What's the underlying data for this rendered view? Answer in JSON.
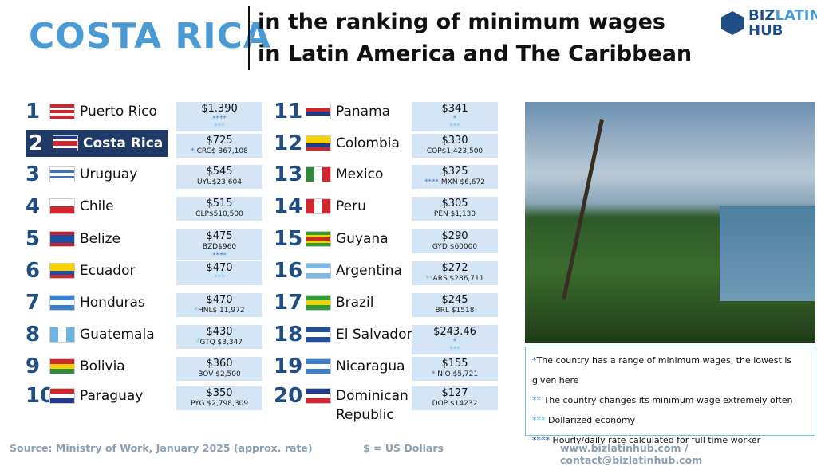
{
  "header": {
    "title": "COSTA RICA",
    "subtitle_line1": "in the ranking of minimum wages",
    "subtitle_line2": "in Latin America and The Caribbean",
    "logo_line1a": "BIZ",
    "logo_line1b": "LATIN",
    "logo_line2": "HUB"
  },
  "ranking": [
    {
      "rank": "1",
      "country": "Puerto Rico",
      "usd": "$1.390",
      "local": "",
      "marks": "****",
      "marks2": "***",
      "flag": [
        "#d0262d",
        "#fff",
        "#d0262d",
        "#fff",
        "#d0262d"
      ]
    },
    {
      "rank": "2",
      "country": "Costa Rica",
      "usd": "$725",
      "local": "CRC$ 367,108",
      "pre": "*",
      "flag": [
        "#1f3a8a",
        "#fff",
        "#d0262d",
        "#d0262d",
        "#fff",
        "#1f3a8a"
      ],
      "highlight": true
    },
    {
      "rank": "3",
      "country": "Uruguay",
      "usd": "$545",
      "local": "UYU$23,604",
      "flag": [
        "#fff",
        "#3a6fc4",
        "#fff",
        "#3a6fc4",
        "#fff"
      ]
    },
    {
      "rank": "4",
      "country": "Chile",
      "usd": "$515",
      "local": "CLP$510,500",
      "flag": [
        "#fff",
        "#d0262d"
      ]
    },
    {
      "rank": "5",
      "country": "Belize",
      "usd": "$475",
      "local": "BZD$960",
      "marks": "****",
      "flag": [
        "#c8202c",
        "#1f4fa0",
        "#1f4fa0",
        "#1f4fa0",
        "#c8202c"
      ]
    },
    {
      "rank": "6",
      "country": "Ecuador",
      "usd": "$470",
      "local": "",
      "marks2": "***",
      "flag": [
        "#f5d200",
        "#f5d200",
        "#1f4fa0",
        "#d0262d"
      ]
    },
    {
      "rank": "7",
      "country": "Honduras",
      "usd": "$470",
      "local": "HNL$ 11,972",
      "pre2": "*",
      "flag": [
        "#3a7fd0",
        "#fff",
        "#3a7fd0"
      ]
    },
    {
      "rank": "8",
      "country": "Guatemala",
      "usd": "$430",
      "local": "GTQ $3,347",
      "pre2": "*",
      "flag": [
        "#6cb4e4",
        "#fff",
        "#6cb4e4"
      ],
      "vertical": true
    },
    {
      "rank": "9",
      "country": "Bolivia",
      "usd": "$360",
      "local": "BOV $2,500",
      "flag": [
        "#d0262d",
        "#f5d200",
        "#2f8a3a"
      ]
    },
    {
      "rank": "10",
      "country": "Paraguay",
      "usd": "$350",
      "local": "PYG $2,798,309",
      "flag": [
        "#d0262d",
        "#fff",
        "#1f3a8a"
      ]
    },
    {
      "rank": "11",
      "country": "Panama",
      "usd": "$341",
      "local": "",
      "marks": "*",
      "marks2": "***",
      "flag": [
        "#fff",
        "#d0262d",
        "#1f3a8a",
        "#fff"
      ]
    },
    {
      "rank": "12",
      "country": "Colombia",
      "usd": "$330",
      "local": "COP$1,423,500",
      "flag": [
        "#f5d200",
        "#f5d200",
        "#1f3a8a",
        "#d0262d"
      ]
    },
    {
      "rank": "13",
      "country": "Mexico",
      "usd": "$325",
      "local": "MXN $6,672",
      "pre": "****",
      "flag": [
        "#2f8a3a",
        "#fff",
        "#d0262d"
      ],
      "vertical": true
    },
    {
      "rank": "14",
      "country": "Peru",
      "usd": "$305",
      "local": "PEN $1,130",
      "flag": [
        "#d0262d",
        "#fff",
        "#d0262d"
      ],
      "vertical": true
    },
    {
      "rank": "15",
      "country": "Guyana",
      "usd": "$290",
      "local": "GYD $60000",
      "flag": [
        "#2f9a3a",
        "#f5d200",
        "#d0262d",
        "#f5d200",
        "#2f9a3a"
      ]
    },
    {
      "rank": "16",
      "country": "Argentina",
      "usd": "$272",
      "local": "ARS $286,711",
      "pre2": "**",
      "flag": [
        "#7cb8e4",
        "#fff",
        "#7cb8e4"
      ]
    },
    {
      "rank": "17",
      "country": "Brazil",
      "usd": "$245",
      "local": "BRL $1518",
      "flag": [
        "#2f9a3a",
        "#f5d200",
        "#2f9a3a"
      ]
    },
    {
      "rank": "18",
      "country": "El Salvador",
      "usd": "$243.46",
      "local": "",
      "marks": "*",
      "marks2": "***",
      "flag": [
        "#1f4fa0",
        "#fff",
        "#1f4fa0"
      ]
    },
    {
      "rank": "19",
      "country": "Nicaragua",
      "usd": "$155",
      "local": "NIO  $5,721",
      "pre": "*",
      "flag": [
        "#3a7fd0",
        "#fff",
        "#3a7fd0"
      ]
    },
    {
      "rank": "20",
      "country": "Dominican Republic",
      "usd": "$127",
      "local": "DOP $14232",
      "flag": [
        "#1f3a8a",
        "#fff",
        "#d0262d"
      ]
    }
  ],
  "notes": [
    {
      "mark": "*",
      "text": "The country has a range of minimum wages, the lowest is given here"
    },
    {
      "mark": "**",
      "text": " The country changes its minimum wage extremely often"
    },
    {
      "mark": "***",
      "text": " Dollarized economy"
    },
    {
      "mark": "****",
      "text": " Hourly/daily rate calculated for full time worker"
    }
  ],
  "footer": {
    "source": "Source: Ministry of Work, January 2025 (approx. rate)",
    "currency": "$ = US Dollars",
    "contact": "www.bizlatinhub.com / contact@bizlatinhub.com"
  }
}
